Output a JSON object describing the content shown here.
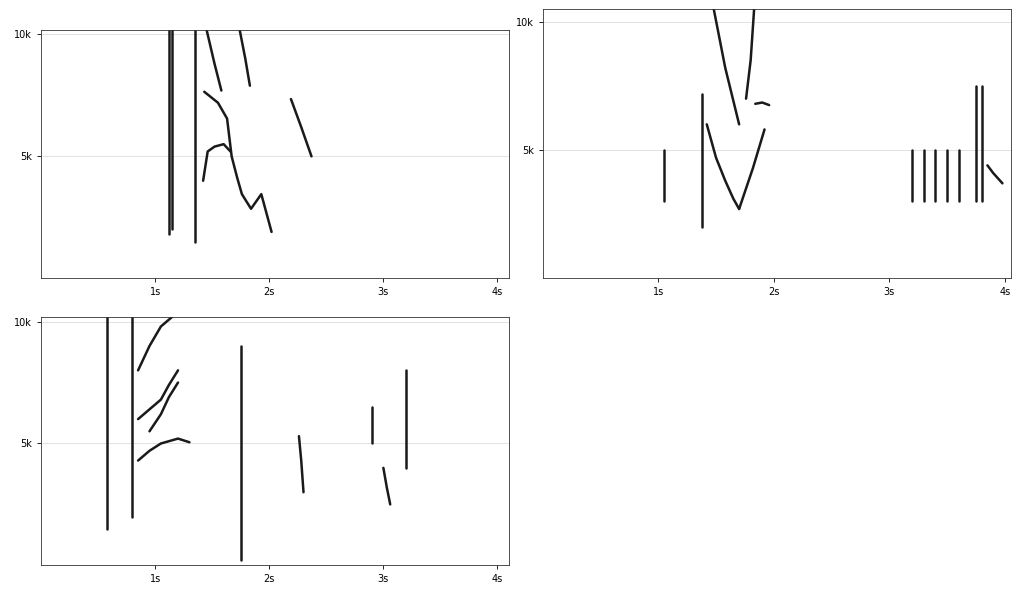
{
  "chart_data": [
    {
      "type": "line",
      "xlim": [
        0,
        4.1
      ],
      "ylim": [
        0,
        10200
      ],
      "xticks": [
        {
          "value": 1,
          "label": "1s"
        },
        {
          "value": 2,
          "label": "2s"
        },
        {
          "value": 3,
          "label": "3s"
        },
        {
          "value": 4,
          "label": "4s"
        }
      ],
      "yticks": [
        {
          "value": 5000,
          "label": "5k"
        },
        {
          "value": 10000,
          "label": "10k"
        }
      ],
      "grid": "y",
      "color": "#1a1a1a",
      "series": [
        {
          "x": [
            1.12,
            1.12
          ],
          "values": [
            1800,
            10200
          ]
        },
        {
          "x": [
            1.15,
            1.15
          ],
          "values": [
            2000,
            10200
          ]
        },
        {
          "x": [
            1.35,
            1.35
          ],
          "values": [
            1500,
            10200
          ]
        },
        {
          "x": [
            1.43,
            1.55,
            1.63,
            1.67,
            1.72,
            1.76,
            1.84,
            1.93,
            2.02
          ],
          "values": [
            7650,
            7200,
            6550,
            5000,
            4100,
            3450,
            2850,
            3450,
            1900
          ]
        },
        {
          "x": [
            1.42,
            1.46,
            1.52,
            1.6,
            1.66
          ],
          "values": [
            4000,
            5200,
            5400,
            5500,
            5200
          ]
        },
        {
          "x": [
            1.45,
            1.52,
            1.58
          ],
          "values": [
            10200,
            8800,
            7700
          ]
        },
        {
          "x": [
            1.74,
            1.79,
            1.83
          ],
          "values": [
            10200,
            9000,
            7900
          ]
        },
        {
          "x": [
            2.19,
            2.28,
            2.37
          ],
          "values": [
            7350,
            6200,
            5000
          ]
        }
      ]
    },
    {
      "type": "line",
      "xlim": [
        0,
        4.05
      ],
      "ylim": [
        0,
        10500
      ],
      "xticks": [
        {
          "value": 1,
          "label": "1s"
        },
        {
          "value": 2,
          "label": "2s"
        },
        {
          "value": 3,
          "label": "3s"
        },
        {
          "value": 4,
          "label": "4s"
        }
      ],
      "yticks": [
        {
          "value": 5000,
          "label": "5k"
        },
        {
          "value": 10000,
          "label": "10k"
        }
      ],
      "grid": "y",
      "color": "#1a1a1a",
      "series": [
        {
          "x": [
            1.05,
            1.05
          ],
          "values": [
            3000,
            5000
          ]
        },
        {
          "x": [
            1.38,
            1.38
          ],
          "values": [
            2000,
            7200
          ]
        },
        {
          "x": [
            1.42,
            1.5,
            1.58,
            1.65,
            1.7
          ],
          "values": [
            6000,
            4700,
            3800,
            3100,
            2700
          ]
        },
        {
          "x": [
            1.7,
            1.76,
            1.82,
            1.88,
            1.92
          ],
          "values": [
            2700,
            3500,
            4300,
            5200,
            5800
          ]
        },
        {
          "x": [
            1.84,
            1.9,
            1.96
          ],
          "values": [
            6800,
            6850,
            6750
          ]
        },
        {
          "x": [
            1.48,
            1.58,
            1.7
          ],
          "values": [
            10500,
            8200,
            6000
          ]
        },
        {
          "x": [
            1.83,
            1.8,
            1.76
          ],
          "values": [
            10500,
            8500,
            7000
          ]
        },
        {
          "x": [
            3.2,
            3.2
          ],
          "values": [
            3000,
            5000
          ]
        },
        {
          "x": [
            3.3,
            3.3
          ],
          "values": [
            3000,
            5000
          ]
        },
        {
          "x": [
            3.4,
            3.4
          ],
          "values": [
            3000,
            5000
          ]
        },
        {
          "x": [
            3.5,
            3.5
          ],
          "values": [
            3000,
            5000
          ]
        },
        {
          "x": [
            3.6,
            3.6
          ],
          "values": [
            3000,
            5000
          ]
        },
        {
          "x": [
            3.75,
            3.75
          ],
          "values": [
            3000,
            7500
          ]
        },
        {
          "x": [
            3.8,
            3.8
          ],
          "values": [
            3000,
            7500
          ]
        },
        {
          "x": [
            3.85,
            3.9,
            3.98
          ],
          "values": [
            4400,
            4100,
            3700
          ]
        }
      ]
    },
    {
      "type": "line",
      "xlim": [
        0,
        4.1
      ],
      "ylim": [
        0,
        10200
      ],
      "xticks": [
        {
          "value": 1,
          "label": "1s"
        },
        {
          "value": 2,
          "label": "2s"
        },
        {
          "value": 3,
          "label": "3s"
        },
        {
          "value": 4,
          "label": "4s"
        }
      ],
      "yticks": [
        {
          "value": 5000,
          "label": "5k"
        },
        {
          "value": 10000,
          "label": "10k"
        }
      ],
      "grid": "y",
      "color": "#1a1a1a",
      "series": [
        {
          "x": [
            0.58,
            0.58
          ],
          "values": [
            1500,
            10200
          ]
        },
        {
          "x": [
            0.8,
            0.8
          ],
          "values": [
            2000,
            10200
          ]
        },
        {
          "x": [
            0.85,
            0.95,
            1.05,
            1.2,
            1.3
          ],
          "values": [
            4300,
            4700,
            5000,
            5200,
            5050
          ]
        },
        {
          "x": [
            0.85,
            0.95,
            1.05,
            1.12,
            1.2
          ],
          "values": [
            6000,
            6400,
            6800,
            7400,
            8000
          ]
        },
        {
          "x": [
            0.85,
            0.95,
            1.05,
            1.15
          ],
          "values": [
            8000,
            9000,
            9800,
            10200
          ]
        },
        {
          "x": [
            0.95,
            1.05,
            1.12,
            1.2
          ],
          "values": [
            5500,
            6200,
            6900,
            7500
          ]
        },
        {
          "x": [
            1.75,
            1.75
          ],
          "values": [
            200,
            9000
          ]
        },
        {
          "x": [
            2.26,
            2.28,
            2.3
          ],
          "values": [
            5300,
            4300,
            3000
          ]
        },
        {
          "x": [
            2.9,
            2.9
          ],
          "values": [
            5000,
            6500
          ]
        },
        {
          "x": [
            3.0,
            3.03,
            3.06
          ],
          "values": [
            4000,
            3200,
            2500
          ]
        },
        {
          "x": [
            3.2,
            3.2
          ],
          "values": [
            4000,
            8000
          ]
        }
      ]
    }
  ]
}
